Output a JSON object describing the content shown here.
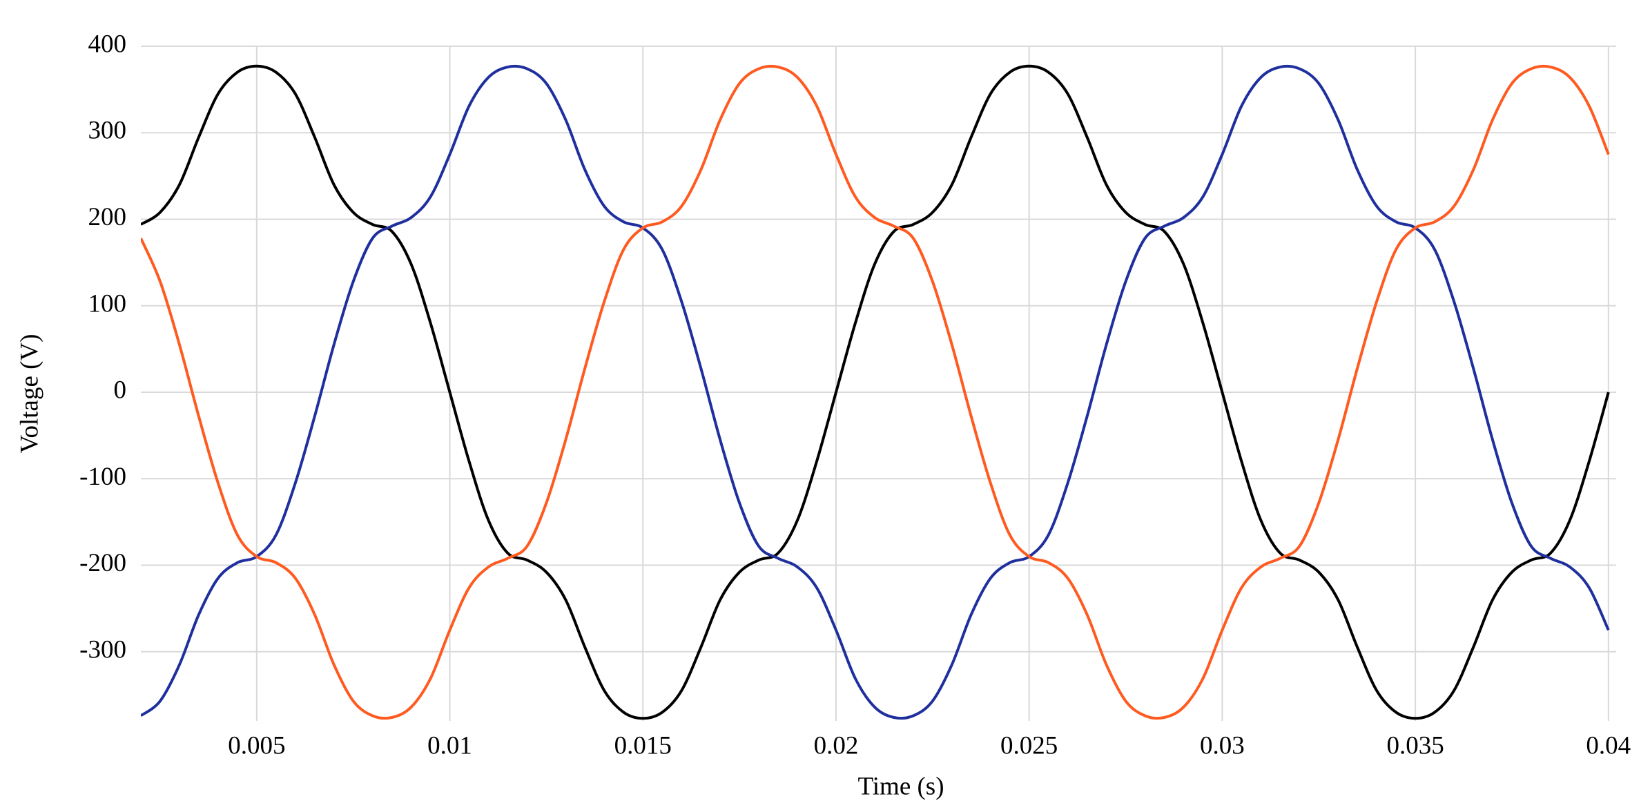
{
  "chart_data": {
    "type": "line",
    "xlabel": "Time (s)",
    "ylabel": "Voltage (V)",
    "xlim": [
      0.002,
      0.0402
    ],
    "ylim": [
      -380,
      400
    ],
    "xticks": [
      0.005,
      0.01,
      0.015,
      0.02,
      0.025,
      0.03,
      0.035,
      0.04
    ],
    "yticks": [
      -300,
      -200,
      -100,
      0,
      100,
      200,
      300,
      400
    ],
    "grid": true,
    "x": [
      0.002,
      0.0025,
      0.003,
      0.0035,
      0.004,
      0.0045,
      0.005,
      0.0055,
      0.006,
      0.0065,
      0.007,
      0.0075,
      0.008,
      0.0085,
      0.009,
      0.0095,
      0.01,
      0.0105,
      0.011,
      0.0115,
      0.012,
      0.0125,
      0.013,
      0.0135,
      0.014,
      0.0145,
      0.015,
      0.0155,
      0.016,
      0.0165,
      0.017,
      0.0175,
      0.018,
      0.0185,
      0.019,
      0.0195,
      0.02,
      0.0205,
      0.021,
      0.0215,
      0.022,
      0.0225,
      0.023,
      0.0235,
      0.024,
      0.0245,
      0.025,
      0.0255,
      0.026,
      0.0265,
      0.027,
      0.0275,
      0.028,
      0.0285,
      0.029,
      0.0295,
      0.03,
      0.0305,
      0.031,
      0.0315,
      0.032,
      0.0325,
      0.033,
      0.0335,
      0.034,
      0.0345,
      0.035,
      0.0355,
      0.036,
      0.0365,
      0.037,
      0.0375,
      0.038,
      0.0385,
      0.039,
      0.0395,
      0.04
    ],
    "series": [
      {
        "color": "#000000",
        "values": [
          194,
          208,
          240,
          295,
          345,
          370,
          377,
          370,
          345,
          295,
          240,
          208,
          194,
          186,
          148,
          80,
          0,
          -80,
          -148,
          -186,
          -194,
          -208,
          -240,
          -295,
          -345,
          -370,
          -377,
          -370,
          -345,
          -295,
          -240,
          -208,
          -194,
          -186,
          -148,
          -80,
          0,
          80,
          148,
          186,
          194,
          208,
          240,
          295,
          345,
          370,
          377,
          370,
          345,
          295,
          240,
          208,
          194,
          186,
          148,
          80,
          0,
          -80,
          -148,
          -186,
          -194,
          -208,
          -240,
          -295,
          -345,
          -370,
          -377,
          -370,
          -345,
          -295,
          -240,
          -208,
          -194,
          -186,
          -148,
          -80,
          0
        ]
      },
      {
        "color": "#1f2f9e",
        "values": [
          -374,
          -357,
          -315,
          -257,
          -215,
          -197,
          -190,
          -165,
          -105,
          -28,
          55,
          128,
          178,
          192,
          202,
          226,
          275,
          331,
          364,
          376,
          374,
          357,
          315,
          257,
          215,
          197,
          190,
          165,
          105,
          28,
          -55,
          -128,
          -178,
          -192,
          -202,
          -226,
          -275,
          -331,
          -364,
          -376,
          -374,
          -357,
          -315,
          -257,
          -215,
          -197,
          -190,
          -165,
          -105,
          -28,
          55,
          128,
          178,
          192,
          202,
          226,
          275,
          331,
          364,
          376,
          374,
          357,
          315,
          257,
          215,
          197,
          190,
          165,
          105,
          28,
          -55,
          -128,
          -178,
          -192,
          -202,
          -226,
          -275
        ]
      },
      {
        "color": "#ff5a1f",
        "values": [
          178,
          128,
          55,
          -28,
          -105,
          -165,
          -190,
          -197,
          -215,
          -257,
          -315,
          -357,
          -374,
          -376,
          -364,
          -331,
          -275,
          -226,
          -202,
          -192,
          -178,
          -128,
          -55,
          28,
          105,
          165,
          190,
          197,
          215,
          257,
          315,
          357,
          374,
          376,
          364,
          331,
          275,
          226,
          202,
          192,
          178,
          128,
          55,
          -28,
          -105,
          -165,
          -190,
          -197,
          -215,
          -257,
          -315,
          -357,
          -374,
          -376,
          -364,
          -331,
          -275,
          -226,
          -202,
          -192,
          -178,
          -128,
          -55,
          28,
          105,
          165,
          190,
          197,
          215,
          257,
          315,
          357,
          374,
          376,
          364,
          331,
          275
        ]
      }
    ]
  }
}
